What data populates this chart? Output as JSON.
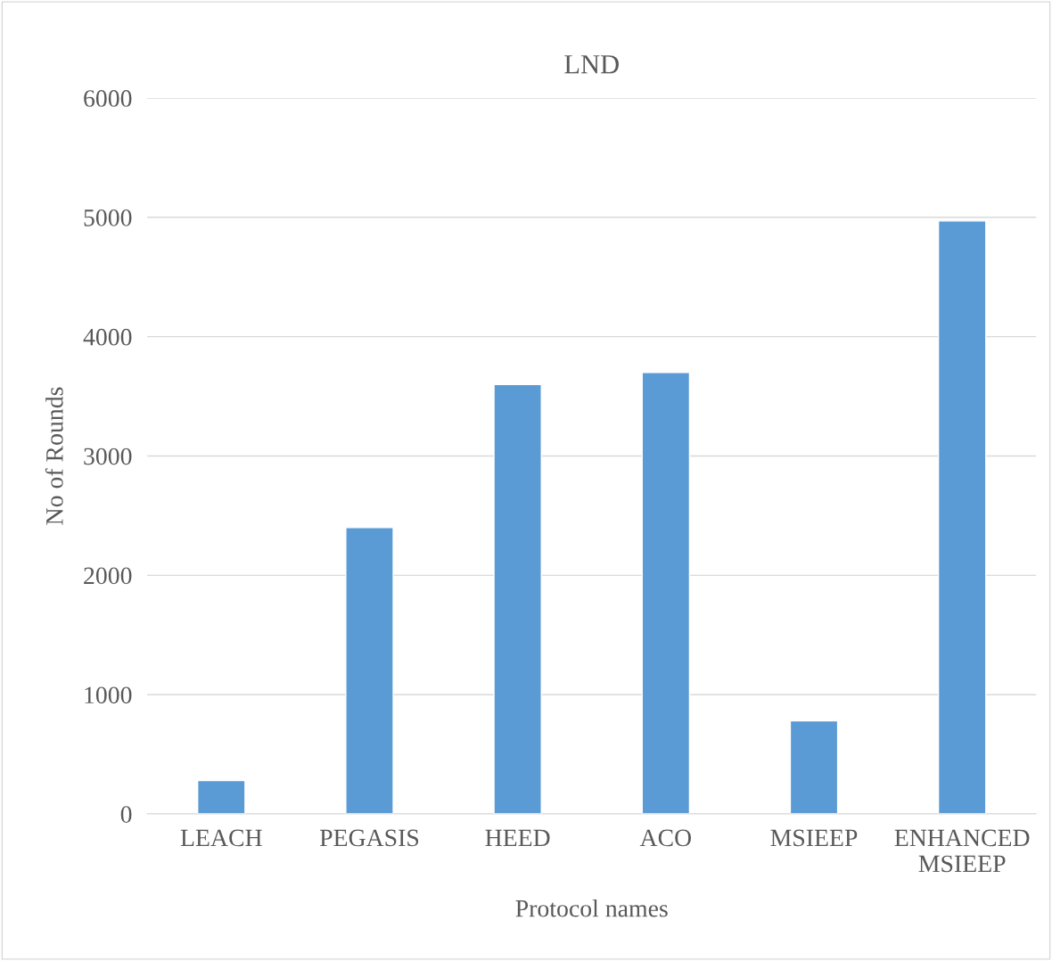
{
  "chart_data": {
    "type": "bar",
    "title": "LND",
    "xlabel": "Protocol names",
    "ylabel": "No of Rounds",
    "categories": [
      "LEACH",
      "PEGASIS",
      "HEED",
      "ACO",
      "MSIEEP",
      "ENHANCED\nMSIEEP"
    ],
    "values": [
      280,
      2400,
      3600,
      3700,
      780,
      4970
    ],
    "color": "#5b9bd5",
    "ylim": [
      0,
      6000
    ],
    "yticks": [
      0,
      1000,
      2000,
      3000,
      4000,
      5000,
      6000
    ],
    "grid": "y",
    "legend": false
  }
}
